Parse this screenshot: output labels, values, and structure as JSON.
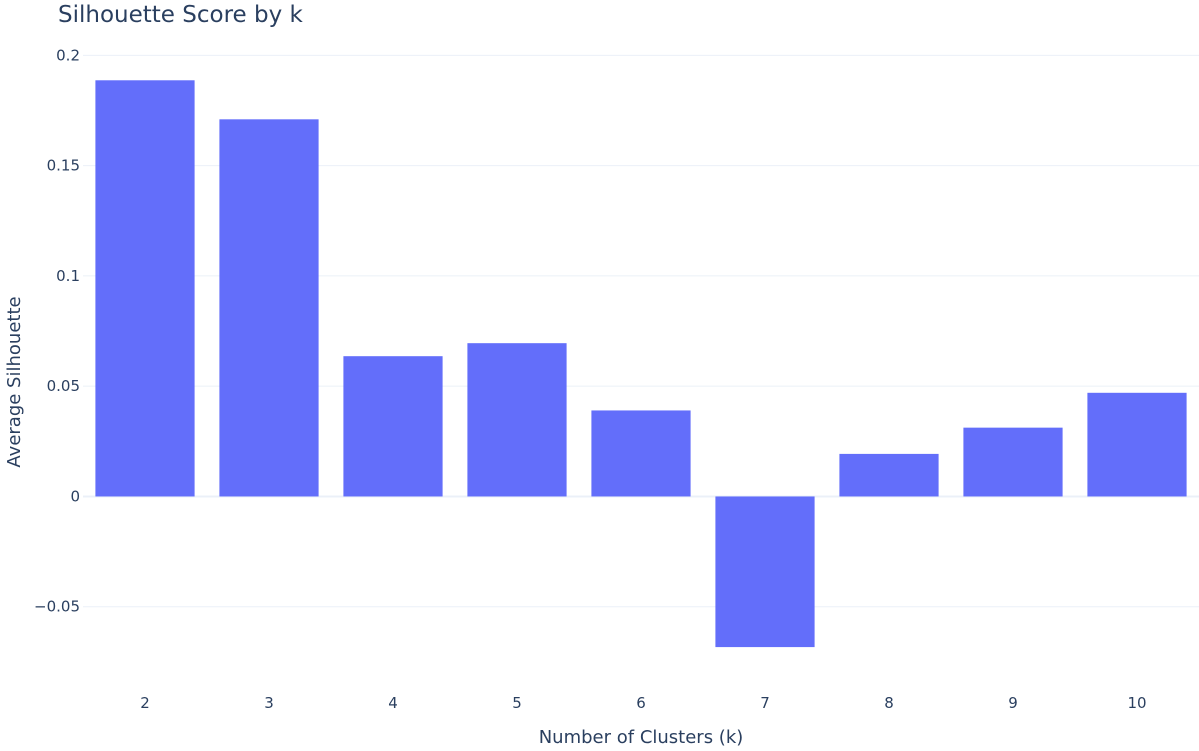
{
  "chart_data": {
    "type": "bar",
    "title": "Silhouette Score by k",
    "xlabel": "Number of Clusters (k)",
    "ylabel": "Average Silhouette",
    "categories": [
      "2",
      "3",
      "4",
      "5",
      "6",
      "7",
      "8",
      "9",
      "10"
    ],
    "values": [
      0.1887,
      0.171,
      0.0636,
      0.0695,
      0.039,
      -0.0683,
      0.0193,
      0.0312,
      0.047
    ],
    "ylim": [
      -0.0805,
      0.2115
    ],
    "yticks": [
      -0.05,
      0,
      0.05,
      0.1,
      0.15,
      0.2
    ],
    "ytick_labels": [
      "−0.05",
      "0",
      "0.05",
      "0.1",
      "0.15",
      "0.2"
    ],
    "grid": true,
    "legend": "none",
    "colors": {
      "bar": "#636efa",
      "grid": "#ebf0f8",
      "text": "#2a3f5f"
    }
  }
}
